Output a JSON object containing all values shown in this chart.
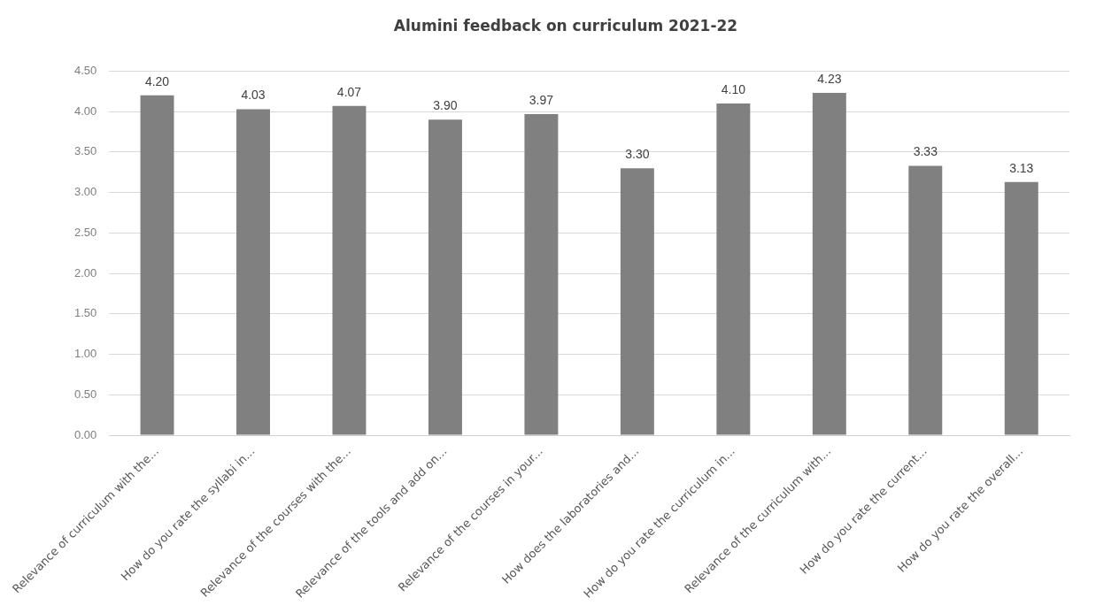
{
  "chart_data": {
    "type": "bar",
    "title": "Alumini feedback on curriculum 2021-22",
    "categories": [
      "Relevance of curriculum with the...",
      "How do you rate the syllabi in...",
      "Relevance of the courses with the...",
      "Relevance of the tools and add on...",
      "Relevance of the courses in your...",
      "How does the laboratories and...",
      "How do you rate the curriculum in...",
      "Relevance of the curriculum with...",
      "How do you rate the current...",
      "How do you rate the overall..."
    ],
    "values": [
      4.2,
      4.03,
      4.07,
      3.9,
      3.97,
      3.3,
      4.1,
      4.23,
      3.33,
      3.13
    ],
    "value_labels": [
      "4.20",
      "4.03",
      "4.07",
      "3.90",
      "3.97",
      "3.30",
      "4.10",
      "4.23",
      "3.33",
      "3.13"
    ],
    "color": "#808080",
    "ylim": [
      0,
      4.5
    ],
    "yticks": [
      {
        "value": 0,
        "label": "0.00"
      },
      {
        "value": 0.5,
        "label": "0.50"
      },
      {
        "value": 1,
        "label": "1.00"
      },
      {
        "value": 1.5,
        "label": "1.50"
      },
      {
        "value": 2,
        "label": "2.00"
      },
      {
        "value": 2.5,
        "label": "2.50"
      },
      {
        "value": 3,
        "label": "3.00"
      },
      {
        "value": 3.5,
        "label": "3.50"
      },
      {
        "value": 4,
        "label": "4.00"
      },
      {
        "value": 4.5,
        "label": "4.50"
      }
    ],
    "grid": "y",
    "legend": false
  }
}
